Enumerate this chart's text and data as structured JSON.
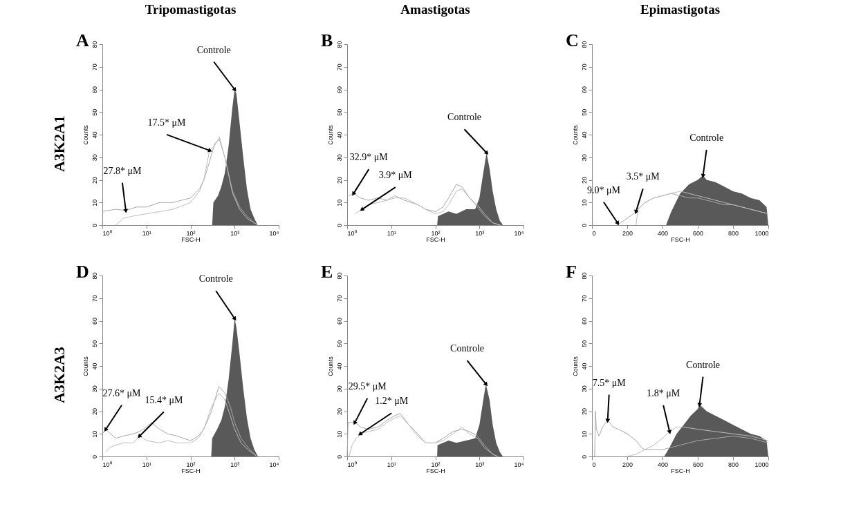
{
  "chart_data": [
    {
      "type": "area",
      "title": "Tripomastigotas",
      "xlabel": "FSC-H",
      "ylabel": "Counts",
      "log": "x",
      "xlim": [
        1,
        10000
      ],
      "xticks": [
        {
          "value": 1,
          "label": "10⁰"
        },
        {
          "value": 10,
          "label": "10¹"
        },
        {
          "value": 100,
          "label": "10²"
        },
        {
          "value": 1000,
          "label": "10³"
        },
        {
          "value": 10000,
          "label": "10⁴"
        }
      ],
      "ylim": [
        0,
        80
      ],
      "yticks": [
        0,
        10,
        20,
        30,
        40,
        50,
        60,
        70,
        80
      ],
      "annotations": [
        "A",
        "A3K2A1",
        {
          "text": "27.8* μM",
          "x": 3.4,
          "y": 6.5
        },
        {
          "text": "17.5* μM",
          "x": 270,
          "y": 33
        },
        {
          "text": "Controle",
          "x": 1000,
          "y": 60
        }
      ],
      "series": [
        {
          "type": "line",
          "color": "#a8a8a8",
          "x": [
            1,
            2,
            3.4,
            6,
            10,
            20,
            40,
            100,
            160,
            200,
            270,
            350,
            450,
            600,
            900,
            1300,
            1900,
            2800,
            3400
          ],
          "values": [
            6,
            7,
            6.5,
            8,
            8,
            10,
            10,
            12,
            16,
            20,
            28,
            36,
            38,
            30,
            15,
            8,
            4,
            1,
            0
          ]
        },
        {
          "type": "line",
          "color": "#bdbdbd",
          "x": [
            2,
            3,
            5,
            10,
            20,
            40,
            100,
            160,
            200,
            270,
            350,
            450,
            600,
            900,
            1300,
            1900,
            2800,
            3400
          ],
          "values": [
            0,
            3,
            4,
            5,
            6,
            7,
            10,
            15,
            20,
            33,
            35,
            39,
            30,
            14,
            7,
            3,
            1,
            0
          ]
        },
        {
          "color": "#595959",
          "x": [
            310,
            330,
            420,
            500,
            600,
            730,
            890,
            1000,
            1100,
            1300,
            1570,
            1900,
            2300,
            2800,
            3350
          ],
          "values": [
            0,
            10,
            13,
            17,
            23,
            35,
            52,
            60,
            58,
            45,
            30,
            16,
            7,
            3,
            0
          ]
        }
      ]
    },
    {
      "type": "area",
      "title": "Amastigotas",
      "xlabel": "FSC-H",
      "ylabel": "Counts",
      "log": "x",
      "xlim": [
        1,
        10000
      ],
      "xticks": [
        {
          "value": 1,
          "label": "10⁰"
        },
        {
          "value": 10,
          "label": "10¹"
        },
        {
          "value": 100,
          "label": "10²"
        },
        {
          "value": 1000,
          "label": "10³"
        },
        {
          "value": 10000,
          "label": "10⁴"
        }
      ],
      "ylim": [
        0,
        80
      ],
      "yticks": [
        0,
        10,
        20,
        30,
        40,
        50,
        60,
        70,
        80
      ],
      "annotations": [
        "B",
        {
          "text": "32.9* μM",
          "x": 1.4,
          "y": 14
        },
        {
          "text": "3.9* μM",
          "x": 2.2,
          "y": 7
        },
        {
          "text": "Controle",
          "x": 1450,
          "y": 32
        }
      ],
      "series": [
        {
          "type": "line",
          "color": "#a8a8a8",
          "x": [
            1.1,
            1.4,
            2,
            3,
            5,
            8,
            12,
            20,
            40,
            60,
            100,
            150,
            200,
            300,
            400,
            600,
            900,
            1300,
            2000,
            3000
          ],
          "values": [
            13,
            14,
            12,
            11,
            12,
            11,
            13,
            11,
            9,
            7,
            6,
            8,
            12,
            18,
            17,
            12,
            8,
            4,
            1,
            0
          ]
        },
        {
          "type": "line",
          "color": "#bdbdbd",
          "x": [
            1.5,
            2.2,
            3,
            5,
            8,
            12,
            20,
            40,
            60,
            100,
            150,
            200,
            300,
            400,
            600,
            900,
            1300,
            2000,
            3000
          ],
          "values": [
            5,
            7,
            9,
            10,
            11,
            12,
            12,
            9,
            7,
            5,
            6,
            9,
            15,
            16,
            12,
            9,
            5,
            1,
            0
          ]
        },
        {
          "color": "#595959",
          "x": [
            110,
            115,
            150,
            200,
            300,
            500,
            800,
            1000,
            1200,
            1450,
            1700,
            2000,
            2400,
            2900,
            3400
          ],
          "values": [
            0,
            4,
            5,
            6,
            5,
            7,
            7,
            12,
            22,
            32,
            25,
            15,
            7,
            2,
            0
          ]
        }
      ]
    },
    {
      "type": "area",
      "title": "Epimastigotas",
      "xlabel": "FSC-H",
      "ylabel": "Counts",
      "xlim": [
        0,
        1000
      ],
      "xticks": [
        0,
        200,
        400,
        600,
        800,
        1000
      ],
      "ylim": [
        0,
        80
      ],
      "yticks": [
        0,
        10,
        20,
        30,
        40,
        50,
        60,
        70,
        80
      ],
      "annotations": [
        "C",
        {
          "text": "9.0* μM",
          "x": 145,
          "y": 1
        },
        {
          "text": "3.5* μM",
          "x": 250,
          "y": 6
        },
        {
          "text": "Controle",
          "x": 630,
          "y": 22
        }
      ],
      "series": [
        {
          "type": "line",
          "color": "#a8a8a8",
          "x": [
            140,
            160,
            200,
            250,
            300,
            350,
            400,
            450,
            500,
            550,
            600,
            650,
            700,
            750,
            800,
            850,
            900,
            950,
            1000
          ],
          "values": [
            0,
            1,
            3,
            6,
            10,
            12,
            13,
            14,
            13,
            12,
            12,
            11,
            10,
            9,
            9,
            8,
            7,
            6,
            5
          ]
        },
        {
          "type": "line",
          "color": "#bdbdbd",
          "x": [
            250,
            260,
            300,
            350,
            400,
            450,
            500,
            550,
            600,
            650,
            700,
            750,
            800,
            850,
            900,
            950,
            1000
          ],
          "values": [
            0,
            7,
            10,
            12,
            13,
            14,
            15,
            14,
            13,
            12,
            11,
            10,
            9,
            8,
            7,
            6,
            5
          ]
        },
        {
          "color": "#595959",
          "x": [
            420,
            450,
            500,
            550,
            600,
            630,
            650,
            700,
            750,
            800,
            850,
            900,
            950,
            990,
            1000
          ],
          "values": [
            0,
            6,
            14,
            18,
            20,
            22,
            20,
            19,
            17,
            15,
            14,
            12,
            11,
            8,
            0
          ]
        }
      ]
    },
    {
      "type": "area",
      "xlabel": "FSC-H",
      "ylabel": "Counts",
      "log": "x",
      "xlim": [
        1,
        10000
      ],
      "xticks": [
        {
          "value": 1,
          "label": "10⁰"
        },
        {
          "value": 10,
          "label": "10¹"
        },
        {
          "value": 100,
          "label": "10²"
        },
        {
          "value": 1000,
          "label": "10³"
        },
        {
          "value": 10000,
          "label": "10⁴"
        }
      ],
      "ylim": [
        0,
        80
      ],
      "yticks": [
        0,
        10,
        20,
        30,
        40,
        50,
        60,
        70,
        80
      ],
      "annotations": [
        "D",
        "A3K2A3",
        {
          "text": "27.6* μM",
          "x": 1.2,
          "y": 12
        },
        {
          "text": "15.4* μM",
          "x": 7,
          "y": 9
        },
        {
          "text": "Controle",
          "x": 1000,
          "y": 61
        }
      ],
      "series": [
        {
          "type": "line",
          "color": "#a8a8a8",
          "x": [
            1,
            1.2,
            2,
            3,
            5,
            7,
            10,
            13,
            20,
            30,
            50,
            70,
            100,
            150,
            200,
            300,
            440,
            600,
            800,
            1000,
            1400,
            2000,
            3200
          ],
          "values": [
            10,
            12,
            8,
            9,
            10,
            11,
            13,
            15,
            12,
            10,
            9,
            8,
            7,
            9,
            12,
            20,
            31,
            28,
            22,
            15,
            8,
            4,
            0
          ]
        },
        {
          "type": "line",
          "color": "#bdbdbd",
          "x": [
            1.2,
            1.5,
            2,
            3,
            5,
            7,
            10,
            20,
            30,
            50,
            100,
            150,
            200,
            300,
            440,
            600,
            800,
            1000,
            1400,
            2000,
            3200
          ],
          "values": [
            2,
            4,
            5,
            6,
            6,
            9,
            7,
            6,
            7,
            6,
            6,
            8,
            12,
            22,
            28,
            25,
            18,
            12,
            6,
            3,
            0
          ]
        },
        {
          "color": "#595959",
          "x": [
            295,
            310,
            400,
            500,
            600,
            730,
            890,
            1000,
            1100,
            1300,
            1570,
            1900,
            2300,
            2800,
            3400
          ],
          "values": [
            0,
            8,
            12,
            16,
            22,
            34,
            50,
            61,
            57,
            45,
            30,
            17,
            8,
            3,
            0
          ]
        }
      ]
    },
    {
      "type": "area",
      "xlabel": "FSC-H",
      "ylabel": "Counts",
      "log": "x",
      "xlim": [
        1,
        10000
      ],
      "xticks": [
        {
          "value": 1,
          "label": "10⁰"
        },
        {
          "value": 10,
          "label": "10¹"
        },
        {
          "value": 100,
          "label": "10²"
        },
        {
          "value": 1000,
          "label": "10³"
        },
        {
          "value": 10000,
          "label": "10⁴"
        }
      ],
      "ylim": [
        0,
        80
      ],
      "yticks": [
        0,
        10,
        20,
        30,
        40,
        50,
        60,
        70,
        80
      ],
      "annotations": [
        "E",
        {
          "text": "29.5* μM",
          "x": 1.5,
          "y": 15
        },
        {
          "text": "1.2* μM",
          "x": 2,
          "y": 10
        },
        {
          "text": "Controle",
          "x": 1400,
          "y": 32
        }
      ],
      "series": [
        {
          "type": "line",
          "color": "#a8a8a8",
          "x": [
            1,
            1.05,
            1.5,
            2,
            3,
            5,
            8,
            12,
            16,
            25,
            40,
            60,
            100,
            150,
            250,
            400,
            600,
            900,
            1300,
            2000,
            2600
          ],
          "values": [
            0,
            15,
            15,
            13,
            12,
            13,
            16,
            18,
            19,
            14,
            10,
            6,
            6,
            8,
            11,
            12,
            11,
            9,
            5,
            1,
            0
          ]
        },
        {
          "type": "line",
          "color": "#bdbdbd",
          "x": [
            1.1,
            1.3,
            1.6,
            2,
            3,
            5,
            8,
            12,
            16,
            25,
            40,
            60,
            100,
            150,
            250,
            400,
            600,
            900,
            1300,
            2000,
            2600
          ],
          "values": [
            0,
            5,
            8,
            10,
            11,
            12,
            15,
            17,
            18,
            14,
            9,
            6,
            6,
            7,
            10,
            13,
            10,
            8,
            4,
            1,
            0
          ]
        },
        {
          "color": "#595959",
          "x": [
            110,
            112,
            150,
            200,
            300,
            500,
            800,
            1000,
            1200,
            1400,
            1700,
            2000,
            2400,
            2900,
            3400
          ],
          "values": [
            0,
            5,
            6,
            7,
            6,
            7,
            8,
            14,
            24,
            32,
            25,
            14,
            6,
            2,
            0
          ]
        }
      ]
    },
    {
      "type": "area",
      "xlabel": "FSC-H",
      "ylabel": "Counts",
      "xlim": [
        0,
        1000
      ],
      "xticks": [
        0,
        200,
        400,
        600,
        800,
        1000
      ],
      "ylim": [
        0,
        80
      ],
      "yticks": [
        0,
        10,
        20,
        30,
        40,
        50,
        60,
        70,
        80
      ],
      "annotations": [
        "F",
        {
          "text": "7.5* μM",
          "x": 89,
          "y": 16
        },
        {
          "text": "1.8* μM",
          "x": 440,
          "y": 11
        },
        {
          "text": "Controle",
          "x": 610,
          "y": 23
        }
      ],
      "series": [
        {
          "type": "line",
          "color": "#a8a8a8",
          "x": [
            15,
            20,
            25,
            40,
            60,
            89,
            120,
            150,
            200,
            250,
            280,
            300,
            350,
            400,
            450,
            500,
            600,
            700,
            800,
            900,
            1000
          ],
          "values": [
            0,
            20,
            12,
            9,
            13,
            16,
            13,
            12,
            10,
            7,
            4,
            3,
            3,
            3,
            4,
            5,
            7,
            8,
            9,
            8,
            6
          ]
        },
        {
          "type": "line",
          "color": "#bdbdbd",
          "x": [
            200,
            250,
            300,
            350,
            400,
            440,
            480,
            520,
            600,
            700,
            800,
            900,
            1000
          ],
          "values": [
            0,
            1,
            3,
            5,
            8,
            11,
            13,
            13,
            12,
            11,
            10,
            9,
            7
          ]
        },
        {
          "color": "#595959",
          "x": [
            410,
            440,
            480,
            520,
            560,
            600,
            610,
            650,
            700,
            750,
            800,
            850,
            900,
            950,
            990,
            1000
          ],
          "values": [
            0,
            4,
            10,
            14,
            18,
            21,
            23,
            20,
            18,
            16,
            14,
            12,
            10,
            9,
            7,
            0
          ]
        }
      ]
    }
  ]
}
